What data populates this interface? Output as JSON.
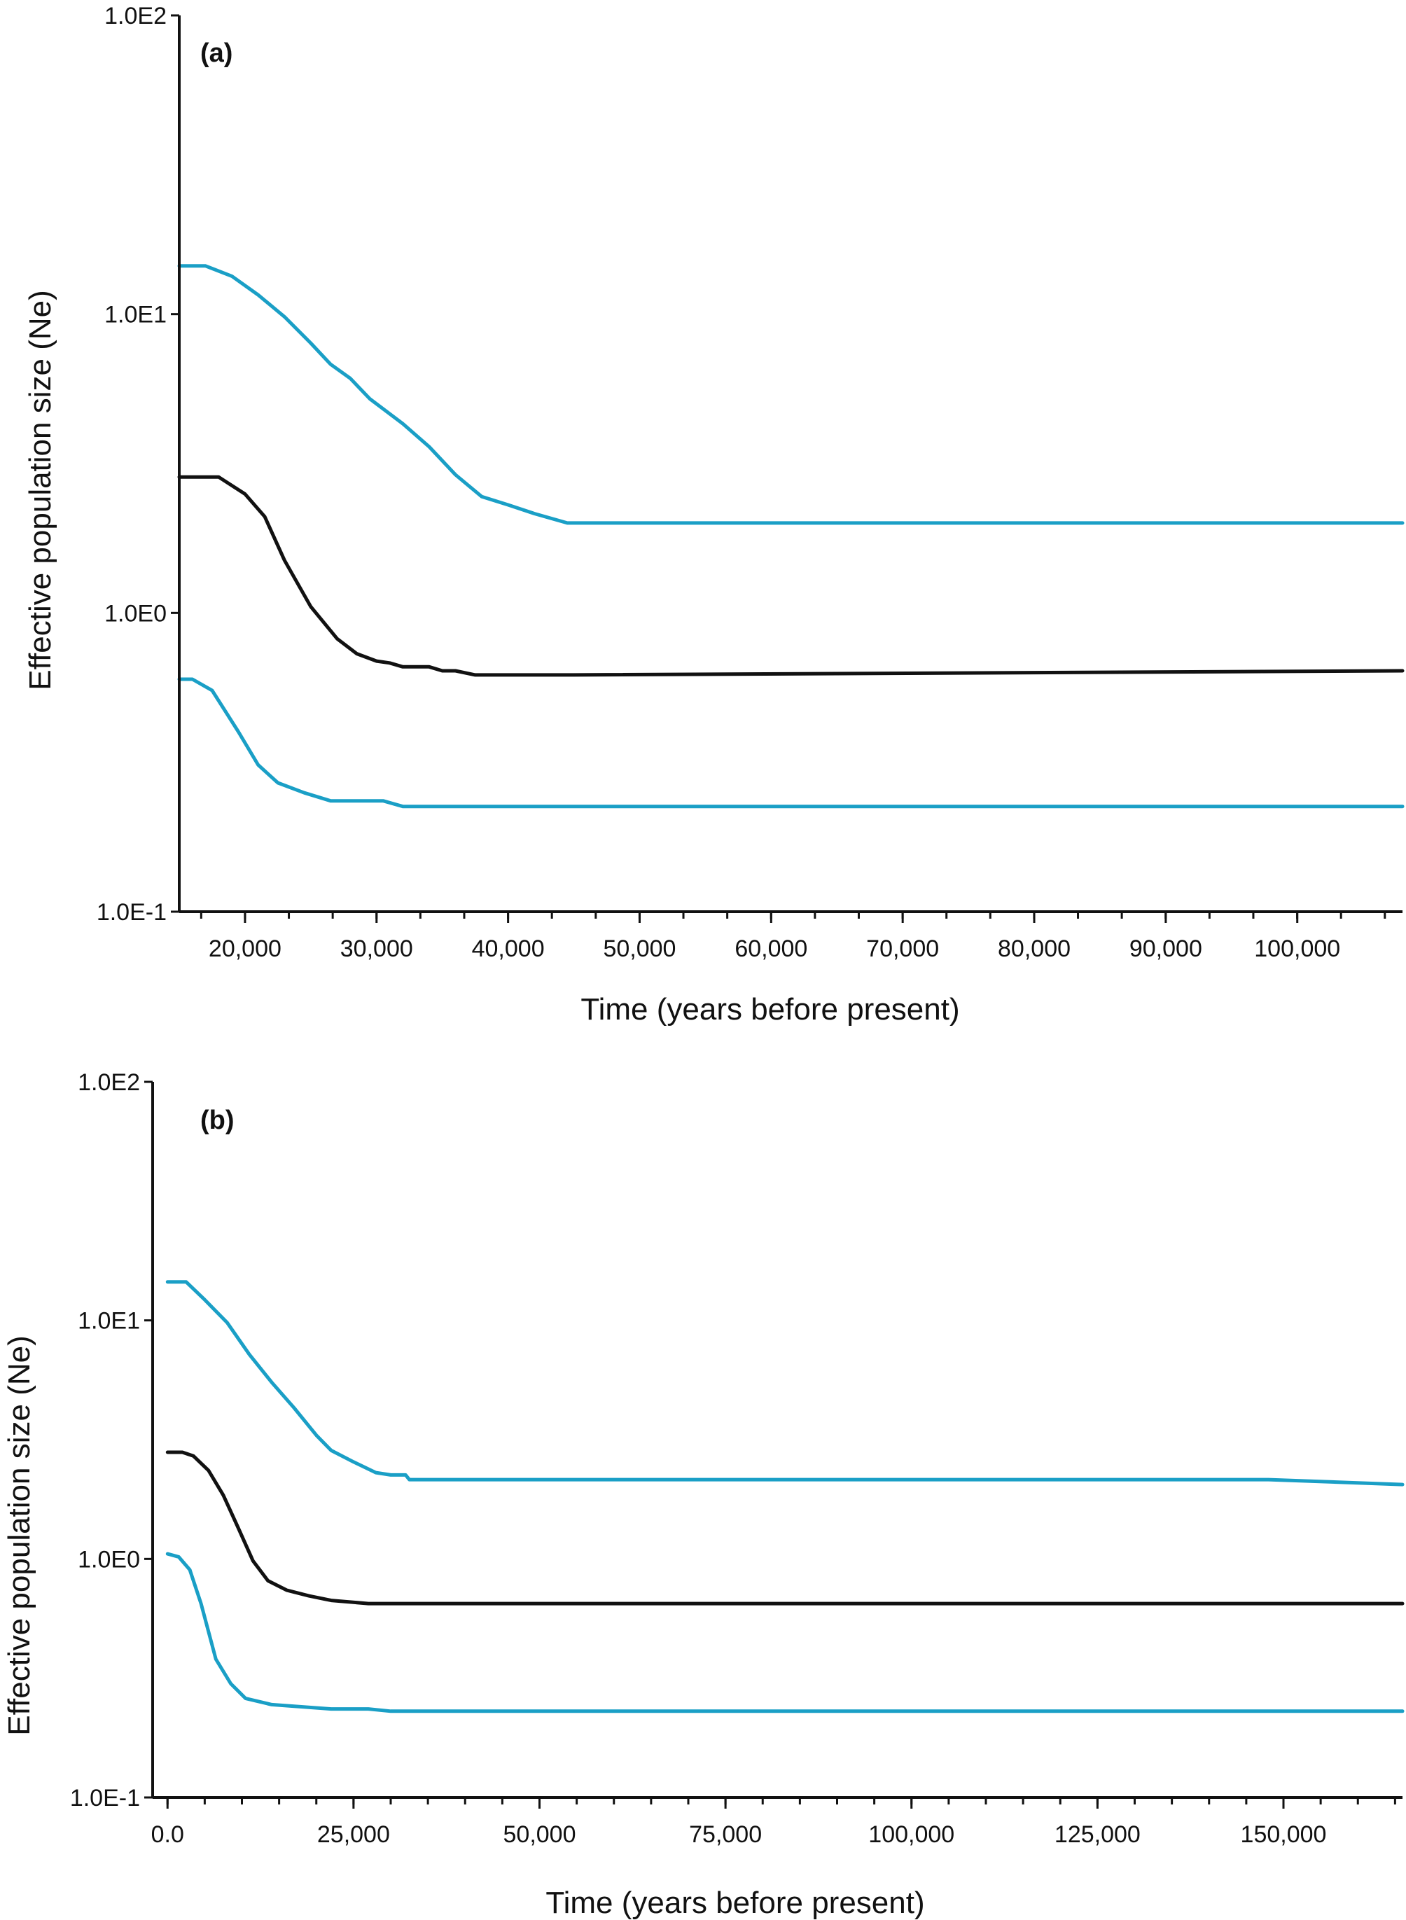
{
  "chart_data": [
    {
      "type": "line",
      "panel_label": "(a)",
      "xlabel": "Time (years before present)",
      "ylabel": "Effective population size (Ne)",
      "yscale": "log",
      "ylim": [
        0.1,
        100
      ],
      "xlim": [
        15000,
        108000
      ],
      "x_ticks": [
        20000,
        30000,
        40000,
        50000,
        60000,
        70000,
        80000,
        90000,
        100000
      ],
      "x_tick_labels": [
        "20,000",
        "30,000",
        "40,000",
        "50,000",
        "60,000",
        "70,000",
        "80,000",
        "90,000",
        "100,000"
      ],
      "x_minor_step": 3333,
      "y_ticks": [
        0.1,
        1,
        10,
        100
      ],
      "y_tick_labels": [
        "1.0E-1",
        "1.0E0",
        "1.0E1",
        "1.0E2"
      ],
      "colors": {
        "median": "#111111",
        "hpd": "#1a9fc6"
      },
      "series": [
        {
          "role": "upper",
          "color": "#1a9fc6",
          "points": [
            [
              15000,
              14.5
            ],
            [
              17000,
              14.5
            ],
            [
              19000,
              13.4
            ],
            [
              21000,
              11.6
            ],
            [
              23000,
              9.8
            ],
            [
              25000,
              8.0
            ],
            [
              26500,
              6.8
            ],
            [
              28000,
              6.1
            ],
            [
              29500,
              5.2
            ],
            [
              32000,
              4.3
            ],
            [
              34000,
              3.6
            ],
            [
              36000,
              2.9
            ],
            [
              38000,
              2.45
            ],
            [
              40000,
              2.3
            ],
            [
              42000,
              2.15
            ],
            [
              44500,
              2.0
            ],
            [
              50000,
              2.0
            ],
            [
              108000,
              2.0
            ]
          ]
        },
        {
          "role": "median",
          "color": "#111111",
          "points": [
            [
              15000,
              2.85
            ],
            [
              18000,
              2.85
            ],
            [
              20000,
              2.5
            ],
            [
              21500,
              2.1
            ],
            [
              23000,
              1.5
            ],
            [
              25000,
              1.05
            ],
            [
              27000,
              0.82
            ],
            [
              28500,
              0.73
            ],
            [
              30000,
              0.69
            ],
            [
              31000,
              0.68
            ],
            [
              32000,
              0.66
            ],
            [
              34000,
              0.66
            ],
            [
              35000,
              0.64
            ],
            [
              36000,
              0.64
            ],
            [
              37500,
              0.62
            ],
            [
              45000,
              0.62
            ],
            [
              108000,
              0.64
            ]
          ]
        },
        {
          "role": "lower",
          "color": "#1a9fc6",
          "points": [
            [
              15000,
              0.6
            ],
            [
              16000,
              0.6
            ],
            [
              17500,
              0.55
            ],
            [
              19500,
              0.4
            ],
            [
              21000,
              0.31
            ],
            [
              22500,
              0.27
            ],
            [
              24500,
              0.25
            ],
            [
              26500,
              0.235
            ],
            [
              30500,
              0.235
            ],
            [
              32000,
              0.225
            ],
            [
              40000,
              0.225
            ],
            [
              108000,
              0.225
            ]
          ]
        }
      ]
    },
    {
      "type": "line",
      "panel_label": "(b)",
      "xlabel": "Time (years before present)",
      "ylabel": "Effective population size (Ne)",
      "yscale": "log",
      "ylim": [
        0.1,
        100
      ],
      "xlim": [
        -2000,
        166000
      ],
      "x_ticks": [
        0,
        25000,
        50000,
        75000,
        100000,
        125000,
        150000
      ],
      "x_tick_labels": [
        "0.0",
        "25,000",
        "50,000",
        "75,000",
        "100,000",
        "125,000",
        "150,000"
      ],
      "x_minor_step": 5000,
      "y_ticks": [
        0.1,
        1,
        10,
        100
      ],
      "y_tick_labels": [
        "1.0E-1",
        "1.0E0",
        "1.0E1",
        "1.0E2"
      ],
      "colors": {
        "median": "#111111",
        "hpd": "#1a9fc6"
      },
      "series": [
        {
          "role": "upper",
          "color": "#1a9fc6",
          "points": [
            [
              0,
              14.5
            ],
            [
              2500,
              14.5
            ],
            [
              5000,
              12.2
            ],
            [
              8000,
              9.8
            ],
            [
              11000,
              7.2
            ],
            [
              14000,
              5.5
            ],
            [
              17000,
              4.3
            ],
            [
              20000,
              3.3
            ],
            [
              22000,
              2.85
            ],
            [
              25000,
              2.55
            ],
            [
              28000,
              2.3
            ],
            [
              30000,
              2.25
            ],
            [
              32000,
              2.25
            ],
            [
              32500,
              2.15
            ],
            [
              40000,
              2.15
            ],
            [
              148000,
              2.15
            ],
            [
              166000,
              2.05
            ]
          ]
        },
        {
          "role": "median",
          "color": "#111111",
          "points": [
            [
              0,
              2.8
            ],
            [
              2000,
              2.8
            ],
            [
              3500,
              2.7
            ],
            [
              5500,
              2.35
            ],
            [
              7500,
              1.85
            ],
            [
              9500,
              1.35
            ],
            [
              11500,
              0.98
            ],
            [
              13500,
              0.81
            ],
            [
              16000,
              0.74
            ],
            [
              19000,
              0.7
            ],
            [
              22000,
              0.67
            ],
            [
              27000,
              0.65
            ],
            [
              50000,
              0.65
            ],
            [
              166000,
              0.65
            ]
          ]
        },
        {
          "role": "lower",
          "color": "#1a9fc6",
          "points": [
            [
              0,
              1.05
            ],
            [
              1500,
              1.02
            ],
            [
              3000,
              0.9
            ],
            [
              4500,
              0.65
            ],
            [
              6500,
              0.38
            ],
            [
              8500,
              0.3
            ],
            [
              10500,
              0.26
            ],
            [
              14000,
              0.245
            ],
            [
              18000,
              0.24
            ],
            [
              22000,
              0.235
            ],
            [
              27000,
              0.235
            ],
            [
              30000,
              0.23
            ],
            [
              40000,
              0.23
            ],
            [
              166000,
              0.23
            ]
          ]
        }
      ]
    }
  ]
}
